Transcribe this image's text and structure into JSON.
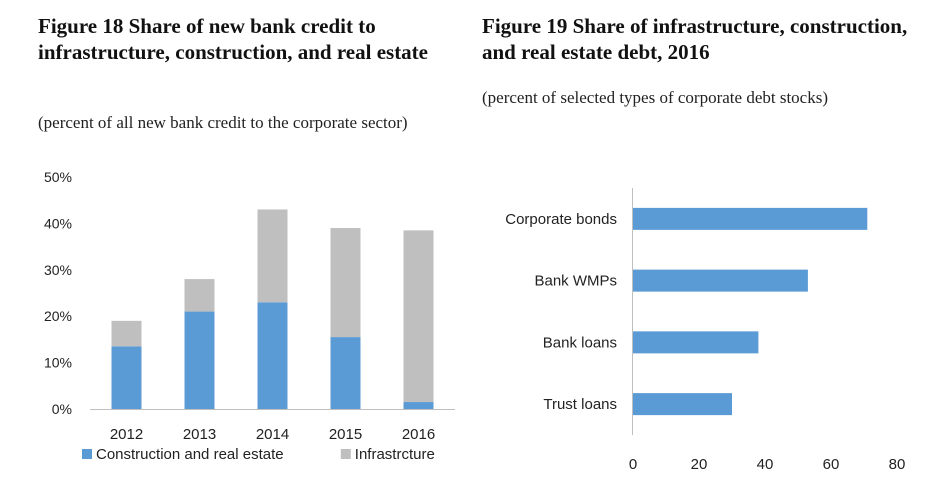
{
  "chart_data": [
    {
      "type": "bar",
      "stacked": true,
      "title": "Figure 18 Share of new bank credit to infrastructure, construction, and real estate",
      "subtitle": "(percent of all new bank credit to the corporate sector)",
      "categories": [
        "2012",
        "2013",
        "2014",
        "2015",
        "2016"
      ],
      "series": [
        {
          "name": "Construction and real estate",
          "color": "#5b9bd5",
          "values": [
            13.5,
            21,
            23,
            15.5,
            1.5
          ]
        },
        {
          "name": "Infrastrcture",
          "color": "#bfbfbf",
          "values": [
            5.5,
            7,
            20,
            23.5,
            37
          ]
        }
      ],
      "yticks": [
        "0%",
        "10%",
        "20%",
        "30%",
        "40%",
        "50%"
      ],
      "ylim": [
        0,
        50
      ],
      "legend": "bottom",
      "grid": false
    },
    {
      "type": "bar",
      "orientation": "horizontal",
      "title": "Figure 19 Share of infrastructure, construction, and real estate debt, 2016",
      "subtitle": "(percent of selected types of corporate debt stocks)",
      "categories": [
        "Corporate bonds",
        "Bank WMPs",
        "Bank loans",
        "Trust loans"
      ],
      "values": [
        71,
        53,
        38,
        30
      ],
      "color": "#5b9bd5",
      "xticks": [
        "0",
        "20",
        "40",
        "60",
        "80"
      ],
      "xlim": [
        0,
        80
      ],
      "grid": false
    }
  ]
}
